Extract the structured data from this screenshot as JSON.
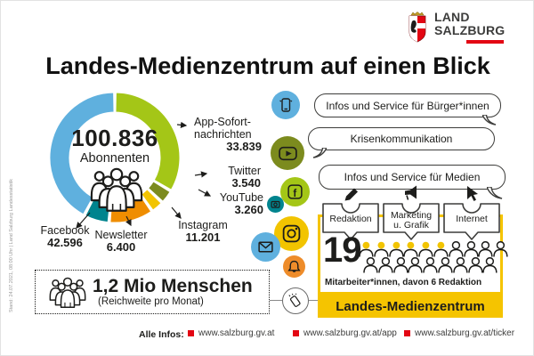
{
  "meta": {
    "side_note": "Stand: 24.07.2021, 08:00 Uhr | Land Salzburg Landesstatistik"
  },
  "logo": {
    "line1": "LAND",
    "line2": "SALZBURG",
    "brand_red": "#e30613"
  },
  "title": "Landes-Medienzentrum auf einen Blick",
  "chart_data": {
    "type": "pie",
    "subtype": "donut",
    "title": "Abonnenten",
    "center_value": "100.836",
    "center_label": "Abonnenten",
    "total": 100836,
    "segments": [
      {
        "label": "App-Sofortnachrichten",
        "display": "App-Sofort-\nnachrichten",
        "value": 33839,
        "value_label": "33.839",
        "color": "#a4c617"
      },
      {
        "label": "Twitter",
        "display": "Twitter",
        "value": 3540,
        "value_label": "3.540",
        "color": "#7c8b1e"
      },
      {
        "label": "YouTube",
        "display": "YouTube",
        "value": 3260,
        "value_label": "3.260",
        "color": "#f2c400"
      },
      {
        "label": "Instagram",
        "display": "Instagram",
        "value": 11201,
        "value_label": "11.201",
        "color": "#ef8d00"
      },
      {
        "label": "Newsletter",
        "display": "Newsletter",
        "value": 6400,
        "value_label": "6.400",
        "color": "#00848e"
      },
      {
        "label": "Facebook",
        "display": "Facebook",
        "value": 42596,
        "value_label": "42.596",
        "color": "#5fb0de"
      }
    ]
  },
  "reach": {
    "value": "1,2 Mio Menschen",
    "note": "(Reichweite pro Monat)"
  },
  "bubbles": [
    {
      "icon": "smartphone-icon",
      "color": "#5fb0de",
      "text": "Infos und Service für Bürger*innen"
    },
    {
      "icon": "video-play-icon",
      "color": "#7c8b1e",
      "text": "Krisenkommunikation"
    },
    {
      "icon": "facebook-icon",
      "color": "#a4c617",
      "text": "Infos und Service für Medien"
    }
  ],
  "channel_icons": [
    {
      "icon": "camera-icon",
      "color": "#00848e"
    },
    {
      "icon": "instagram-icon",
      "color": "#f2c400"
    },
    {
      "icon": "envelope-icon",
      "color": "#5fb0de"
    },
    {
      "icon": "bell-icon",
      "color": "#ee8c2a"
    },
    {
      "icon": "hand-holding-phone-icon",
      "color": "#ffffff"
    }
  ],
  "team": {
    "count": "19",
    "note": "Mitarbeiter*innen, davon 6 Redaktion",
    "highlighted": 6,
    "rows": [
      10,
      9
    ],
    "highlight_color": "#f2c400",
    "tags": [
      "Redaktion",
      "Marketing u. Grafik",
      "Internet"
    ],
    "banner": "Landes-Medienzentrum"
  },
  "footer": {
    "label": "Alle Infos:",
    "links": [
      "www.salzburg.gv.at",
      "www.salzburg.gv.at/app",
      "www.salzburg.gv.at/ticker"
    ],
    "bullet_color": "#e30613"
  }
}
